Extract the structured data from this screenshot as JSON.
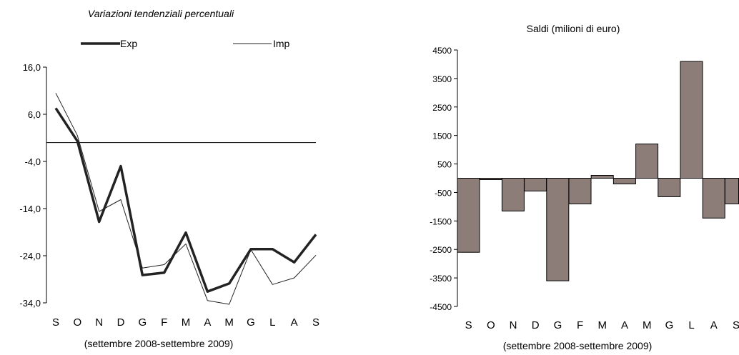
{
  "charts": {
    "left": {
      "title": "Variazioni tendenziali percentuali",
      "caption": "(settembre 2008-settembre 2009)"
    },
    "right": {
      "title": "Saldi (milioni di euro)",
      "caption": "(settembre 2008-settembre 2009)"
    }
  },
  "chart_data": [
    {
      "type": "line",
      "title": "Variazioni tendenziali percentuali",
      "xlabel": "(settembre 2008-settembre 2009)",
      "categories": [
        "S",
        "O",
        "N",
        "D",
        "G",
        "F",
        "M",
        "A",
        "M",
        "G",
        "L",
        "A",
        "S"
      ],
      "ylim": [
        -34,
        16
      ],
      "yticks": [
        "16,0",
        "6,0",
        "-4,0",
        "-14,0",
        "-24,0",
        "-34,0"
      ],
      "ytick_values": [
        16,
        6,
        -4,
        -14,
        -24,
        -34
      ],
      "reference_line": 0,
      "legend_position": "top",
      "series": [
        {
          "name": "Exp",
          "style": "thick",
          "color": "#222222",
          "values": [
            7.3,
            0.3,
            -16.8,
            -5.0,
            -28.1,
            -27.6,
            -19.1,
            -31.6,
            -29.9,
            -22.6,
            -22.6,
            -25.4,
            -19.5
          ]
        },
        {
          "name": "Imp",
          "style": "thin",
          "color": "#222222",
          "values": [
            10.5,
            1.5,
            -14.6,
            -12.1,
            -26.6,
            -25.9,
            -21.5,
            -33.5,
            -34.3,
            -22.7,
            -30.1,
            -28.7,
            -23.9
          ]
        }
      ]
    },
    {
      "type": "bar",
      "title": "Saldi (milioni di euro)",
      "xlabel": "(settembre 2008-settembre 2009)",
      "categories": [
        "S",
        "O",
        "N",
        "D",
        "G",
        "F",
        "M",
        "A",
        "M",
        "G",
        "L",
        "A",
        "S"
      ],
      "ylim": [
        -4500,
        4500
      ],
      "yticks": [
        "4500",
        "3500",
        "2500",
        "1500",
        "500",
        "-500",
        "-1500",
        "-2500",
        "-3500",
        "-4500"
      ],
      "ytick_values": [
        4500,
        3500,
        2500,
        1500,
        500,
        -500,
        -1500,
        -2500,
        -3500,
        -4500
      ],
      "bar_color": "#8c7d79",
      "values": [
        -2600,
        -50,
        -1150,
        -450,
        -3600,
        -900,
        100,
        -200,
        1200,
        -650,
        4100,
        -1400,
        -900
      ]
    }
  ]
}
